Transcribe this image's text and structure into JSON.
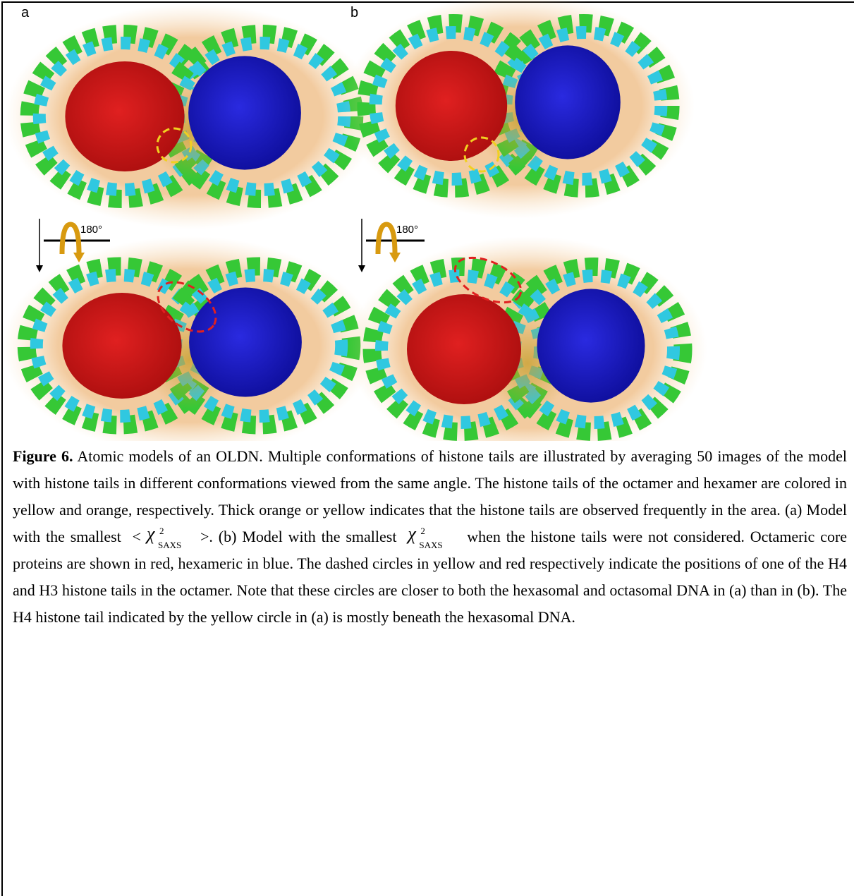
{
  "figure": {
    "panels": [
      {
        "label": "a",
        "rotation": "180°"
      },
      {
        "label": "b",
        "rotation": "180°"
      }
    ],
    "caption": {
      "label": "Figure 6.",
      "text_1": "Atomic models of an OLDN. Multiple conformations of histone tails are illustrated by averaging 50 images of the model with histone tails in different conformations viewed from the same angle. The histone tails of the octamer and hexamer are colored in yellow and orange, respectively. Thick orange or yellow indicates that the histone tails are observed frequently in the area. (a) Model with the smallest",
      "bracket_open": "<",
      "math_1": {
        "symbol": "χ",
        "sup": "2",
        "sub": "SAXS"
      },
      "text_2": ">. (b) Model with the smallest",
      "math_2": {
        "symbol": "χ",
        "sup": "2",
        "sub": "SAXS"
      },
      "text_3": "when the histone tails were not considered. Octameric core proteins are shown in red, hexameric in blue. The dashed circles in yellow and red respectively indicate the positions of one of the H4 and H3 histone tails in the octamer. Note that these circles are closer to both the hexasomal and octasomal DNA in (a) than in (b). The H4 histone tail indicated by the yellow circle in (a) is mostly beneath the hexasomal DNA."
    }
  }
}
